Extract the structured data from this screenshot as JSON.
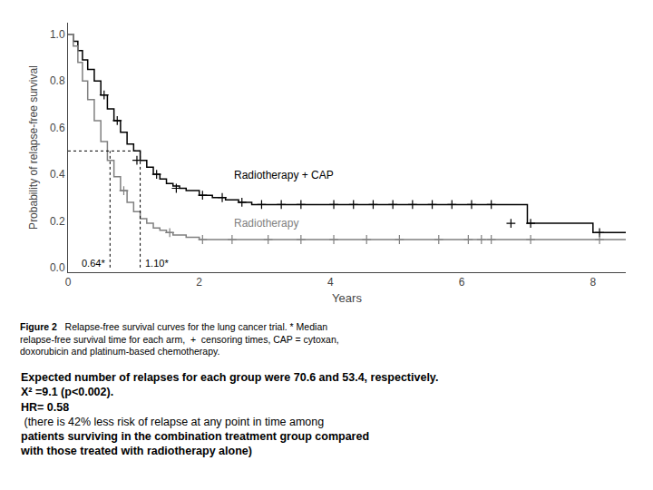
{
  "chart_data": {
    "type": "step",
    "xlabel": "Years",
    "ylabel": "Probability of relapse-free survival",
    "xlim": [
      0,
      8.5
    ],
    "ylim": [
      -0.02,
      1.05
    ],
    "xticks": [
      0,
      2,
      4,
      6,
      8
    ],
    "yticks": [
      {
        "value": 0.0,
        "label": "0.0"
      },
      {
        "value": 0.2,
        "label": "0.2"
      },
      {
        "value": 0.4,
        "label": "0.4"
      },
      {
        "value": 0.6,
        "label": "0.6"
      },
      {
        "value": 0.8,
        "label": "0.8"
      },
      {
        "value": 1.0,
        "label": "1.0"
      }
    ],
    "series": [
      {
        "name": "Radiotherapy + CAP",
        "color": "#000000",
        "marker": "cross",
        "x": [
          0,
          0.08,
          0.15,
          0.22,
          0.3,
          0.4,
          0.5,
          0.6,
          0.7,
          0.8,
          0.9,
          1.0,
          1.1,
          1.2,
          1.3,
          1.4,
          1.5,
          1.6,
          1.7,
          1.8,
          2.0,
          2.2,
          2.4,
          2.6,
          2.8,
          3.0,
          3.2,
          3.5,
          4.0,
          4.5,
          5.0,
          5.5,
          6.0,
          6.5,
          7.0,
          7.5,
          8.0,
          8.5
        ],
        "values": [
          1.0,
          0.97,
          0.93,
          0.89,
          0.85,
          0.8,
          0.74,
          0.68,
          0.63,
          0.58,
          0.53,
          0.5,
          0.46,
          0.43,
          0.4,
          0.38,
          0.36,
          0.35,
          0.34,
          0.33,
          0.31,
          0.3,
          0.29,
          0.28,
          0.27,
          0.27,
          0.27,
          0.27,
          0.27,
          0.27,
          0.27,
          0.27,
          0.27,
          0.27,
          0.19,
          0.19,
          0.15,
          0.15
        ],
        "censor_x": [
          0.55,
          0.75,
          1.05,
          1.35,
          1.65,
          2.05,
          2.35,
          2.65,
          2.95,
          3.25,
          3.55,
          4.05,
          4.35,
          4.65,
          4.95,
          5.25,
          5.55,
          5.85,
          6.15,
          6.45,
          6.75,
          7.05,
          8.1
        ],
        "censor_y": [
          0.74,
          0.63,
          0.46,
          0.4,
          0.34,
          0.31,
          0.3,
          0.28,
          0.27,
          0.27,
          0.27,
          0.27,
          0.27,
          0.27,
          0.27,
          0.27,
          0.27,
          0.27,
          0.27,
          0.27,
          0.19,
          0.19,
          0.15
        ],
        "median": 1.1,
        "median_label": "1.10*"
      },
      {
        "name": "Radiotherapy",
        "color": "#808080",
        "marker": "cross",
        "x": [
          0,
          0.08,
          0.15,
          0.22,
          0.3,
          0.4,
          0.5,
          0.6,
          0.7,
          0.8,
          0.9,
          1.0,
          1.1,
          1.2,
          1.3,
          1.4,
          1.5,
          1.6,
          1.7,
          1.8,
          1.9,
          2.0,
          2.2,
          2.4,
          2.6,
          2.8,
          3.0,
          3.2,
          3.5,
          4.0,
          4.5,
          5.0,
          5.5,
          6.0,
          6.5,
          7.0,
          7.5,
          8.0,
          8.5
        ],
        "values": [
          1.0,
          0.95,
          0.88,
          0.8,
          0.72,
          0.63,
          0.54,
          0.46,
          0.39,
          0.33,
          0.28,
          0.24,
          0.21,
          0.19,
          0.17,
          0.16,
          0.15,
          0.14,
          0.14,
          0.13,
          0.13,
          0.12,
          0.12,
          0.12,
          0.12,
          0.12,
          0.12,
          0.12,
          0.12,
          0.12,
          0.12,
          0.12,
          0.12,
          0.12,
          0.12,
          0.12,
          0.12,
          0.12,
          0.12
        ],
        "censor_x": [
          0.85,
          1.55,
          2.05,
          2.5,
          3.05,
          3.55,
          4.05,
          4.55,
          5.05,
          5.65,
          6.1,
          6.3,
          6.45,
          7.05,
          8.1
        ],
        "censor_y": [
          0.33,
          0.15,
          0.12,
          0.12,
          0.12,
          0.12,
          0.12,
          0.12,
          0.12,
          0.12,
          0.12,
          0.12,
          0.12,
          0.12,
          0.12
        ],
        "median": 0.64,
        "median_label": "0.64*"
      }
    ],
    "median_line_y": 0.5,
    "caption_bold": "Figure 2",
    "caption": "   Relapse-free survival curves for the lung cancer trial. * Median\nrelapse-free survival time for each arm,  +  censoring times, CAP = cytoxan,\ndoxorubicin and platinum-based chemotherapy.",
    "notes": [
      "Expected number of relapses for each group were 70.6 and 53.4, respectively.",
      "X² =9.1 (p<0.002).",
      "HR= 0.58",
      " (there is 42% less risk of relapse at any point in time among",
      "patients surviving in the combination treatment group compared",
      "with those treated with radiotherapy alone)"
    ]
  }
}
